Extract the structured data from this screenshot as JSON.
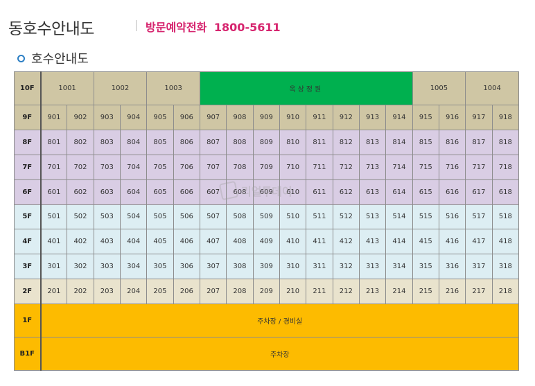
{
  "header": {
    "title": "동호수안내도",
    "phone_label": "방문예약전화",
    "phone_number": "1800-5611"
  },
  "section": {
    "title": "호수안내도"
  },
  "watermark": "리얼투데이",
  "colors": {
    "tan": "#cfc6a4",
    "lavender": "#d9cde4",
    "light_blue": "#ddeef3",
    "cream": "#e9e3cd",
    "yellow": "#fdbb00",
    "green": "#00b04f",
    "accent_pink": "#d6246e",
    "bullet_blue": "#2c7fc4"
  },
  "floors": [
    {
      "label": "10F",
      "color": "tan",
      "cells": [
        {
          "text": "1001",
          "span": 2,
          "color": "tan"
        },
        {
          "text": "1002",
          "span": 2,
          "color": "tan"
        },
        {
          "text": "1003",
          "span": 2,
          "color": "tan"
        },
        {
          "text": "옥상정원",
          "span": 8,
          "color": "green",
          "garden": true
        },
        {
          "text": "1005",
          "span": 2,
          "color": "tan"
        },
        {
          "text": "1004",
          "span": 2,
          "color": "tan"
        }
      ]
    },
    {
      "label": "9F",
      "color": "tan",
      "units": [
        "901",
        "902",
        "903",
        "904",
        "905",
        "906",
        "907",
        "908",
        "909",
        "910",
        "911",
        "912",
        "913",
        "914",
        "915",
        "916",
        "917",
        "918"
      ]
    },
    {
      "label": "8F",
      "color": "lavender",
      "units": [
        "801",
        "802",
        "803",
        "804",
        "805",
        "806",
        "807",
        "808",
        "809",
        "810",
        "811",
        "812",
        "813",
        "814",
        "815",
        "816",
        "817",
        "818"
      ]
    },
    {
      "label": "7F",
      "color": "lavender",
      "units": [
        "701",
        "702",
        "703",
        "704",
        "705",
        "706",
        "707",
        "708",
        "709",
        "710",
        "711",
        "712",
        "713",
        "714",
        "715",
        "716",
        "717",
        "718"
      ]
    },
    {
      "label": "6F",
      "color": "lavender",
      "units": [
        "601",
        "602",
        "603",
        "604",
        "605",
        "606",
        "607",
        "608",
        "609",
        "610",
        "611",
        "612",
        "613",
        "614",
        "615",
        "616",
        "617",
        "618"
      ]
    },
    {
      "label": "5F",
      "color": "light_blue",
      "units": [
        "501",
        "502",
        "503",
        "504",
        "505",
        "506",
        "507",
        "508",
        "509",
        "510",
        "511",
        "512",
        "513",
        "514",
        "515",
        "516",
        "517",
        "518"
      ]
    },
    {
      "label": "4F",
      "color": "light_blue",
      "units": [
        "401",
        "402",
        "403",
        "404",
        "405",
        "406",
        "407",
        "408",
        "409",
        "410",
        "411",
        "412",
        "413",
        "414",
        "415",
        "416",
        "417",
        "418"
      ]
    },
    {
      "label": "3F",
      "color": "light_blue",
      "units": [
        "301",
        "302",
        "303",
        "304",
        "305",
        "306",
        "307",
        "308",
        "309",
        "310",
        "311",
        "312",
        "313",
        "314",
        "315",
        "316",
        "317",
        "318"
      ]
    },
    {
      "label": "2F",
      "color": "cream",
      "units": [
        "201",
        "202",
        "203",
        "204",
        "205",
        "206",
        "207",
        "208",
        "209",
        "210",
        "211",
        "212",
        "213",
        "214",
        "215",
        "216",
        "217",
        "218"
      ]
    },
    {
      "label": "1F",
      "color": "yellow",
      "cells": [
        {
          "text": "주차장 / 경비실",
          "span": 18,
          "color": "yellow"
        }
      ]
    },
    {
      "label": "B1F",
      "color": "yellow",
      "cells": [
        {
          "text": "주차장",
          "span": 18,
          "color": "yellow"
        }
      ]
    }
  ]
}
